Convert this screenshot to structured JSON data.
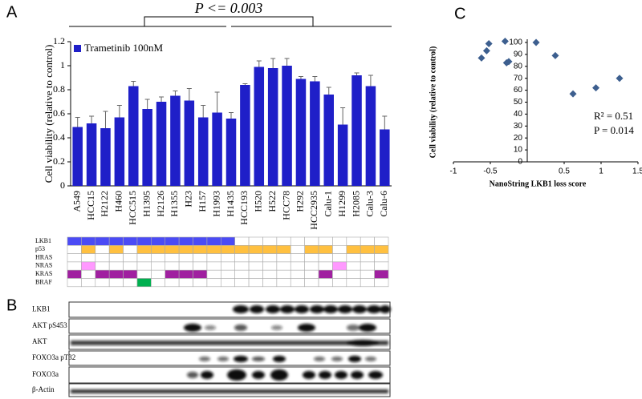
{
  "panels": [
    "A",
    "B",
    "C"
  ],
  "chart_data": [
    {
      "type": "bar",
      "annotation": "P <= 0.003",
      "y_label": "Cell viability (relative to control)",
      "categories": [
        "A549",
        "HCC15",
        "H2122",
        "H460",
        "HCC515",
        "H1395",
        "H2126",
        "H1355",
        "H23",
        "H157",
        "H1993",
        "H1435",
        "HCC193",
        "H520",
        "H522",
        "HCC78",
        "H292",
        "HCC2935",
        "Calu-1",
        "H1299",
        "H2085",
        "Calu-3",
        "Calu-6"
      ],
      "series": [
        {
          "name": "Trametinib 100nM",
          "color": "#1f1fc8",
          "values": [
            0.49,
            0.52,
            0.48,
            0.57,
            0.83,
            0.64,
            0.7,
            0.75,
            0.71,
            0.57,
            0.61,
            0.56,
            0.84,
            0.99,
            0.98,
            1.0,
            0.89,
            0.87,
            0.76,
            0.51,
            0.92,
            0.83,
            0.47
          ],
          "errors": [
            0.08,
            0.06,
            0.14,
            0.1,
            0.04,
            0.08,
            0.04,
            0.04,
            0.1,
            0.1,
            0.17,
            0.05,
            0.01,
            0.05,
            0.08,
            0.06,
            0.02,
            0.04,
            0.06,
            0.14,
            0.02,
            0.09,
            0.11
          ]
        }
      ],
      "ylim": [
        0,
        1.2
      ],
      "yticks": [
        0,
        0.2,
        0.4,
        0.6,
        0.8,
        1,
        1.2
      ]
    },
    {
      "type": "scatter",
      "x_label": "NanoString LKB1 loss score",
      "y_label": "Cell viability (relative to control)",
      "annotations": [
        "R² = 0.51",
        "P = 0.014"
      ],
      "series": [
        {
          "color": "#3d5f8f",
          "x": [
            -0.62,
            -0.55,
            -0.52,
            -0.3,
            -0.28,
            -0.25,
            0.12,
            0.38,
            0.62,
            0.93,
            1.25
          ],
          "values": [
            87,
            93,
            99,
            101,
            83,
            84,
            100,
            89,
            57,
            62,
            70
          ]
        }
      ],
      "xlim": [
        -1,
        1.5
      ],
      "xticks": [
        -1,
        -0.5,
        0.5,
        1,
        1.5
      ],
      "ylim": [
        0,
        100
      ],
      "yticks": [
        0,
        10,
        20,
        30,
        40,
        50,
        60,
        70,
        80,
        90,
        100
      ]
    }
  ],
  "mutations": [
    {
      "name": "LKB1",
      "color": "#4b4bf5",
      "status": [
        1,
        1,
        1,
        1,
        1,
        1,
        1,
        1,
        1,
        1,
        1,
        1,
        0,
        0,
        0,
        0,
        0,
        0,
        0,
        0,
        0,
        0,
        0
      ]
    },
    {
      "name": "p53",
      "color": "#ffc040",
      "status": [
        0,
        1,
        0,
        1,
        0,
        1,
        1,
        1,
        1,
        1,
        1,
        1,
        1,
        1,
        1,
        1,
        0,
        1,
        1,
        0,
        1,
        1,
        1
      ]
    },
    {
      "name": "HRAS",
      "status": [
        0,
        0,
        0,
        0,
        0,
        0,
        0,
        0,
        0,
        0,
        0,
        0,
        0,
        0,
        0,
        0,
        0,
        0,
        0,
        0,
        0,
        0,
        0
      ]
    },
    {
      "name": "NRAS",
      "color": "#ff99ff",
      "status": [
        0,
        1,
        0,
        0,
        0,
        0,
        0,
        0,
        0,
        0,
        0,
        0,
        0,
        0,
        0,
        0,
        0,
        0,
        0,
        1,
        0,
        0,
        0
      ]
    },
    {
      "name": "KRAS",
      "color": "#a020a0",
      "status": [
        1,
        0,
        1,
        1,
        1,
        0,
        0,
        1,
        1,
        1,
        0,
        0,
        0,
        0,
        0,
        0,
        0,
        0,
        1,
        0,
        0,
        0,
        1
      ]
    },
    {
      "name": "BRAF",
      "color": "#00b050",
      "status": [
        0,
        0,
        0,
        0,
        0,
        1,
        0,
        0,
        0,
        0,
        0,
        0,
        0,
        0,
        0,
        0,
        0,
        0,
        0,
        0,
        0,
        0,
        0
      ]
    }
  ],
  "blots": [
    "LKB1",
    "AKT pS453",
    "AKT",
    "FOXO3a pT32",
    "FOXO3a",
    "β-Actin"
  ]
}
